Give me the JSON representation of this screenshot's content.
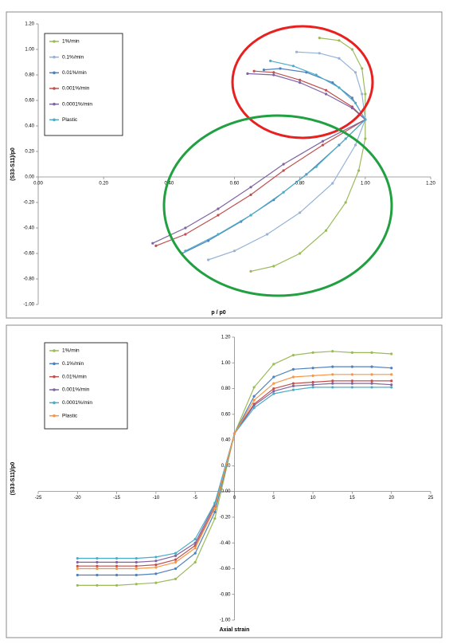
{
  "chart_data": [
    {
      "type": "line",
      "y_label": "(S33-S11)/p0",
      "x_label": "p / p0",
      "xlim": [
        0,
        1.2
      ],
      "ylim": [
        -1,
        1.2
      ],
      "xticks": [
        {
          "value": 0,
          "label": "0.00"
        },
        {
          "value": 0.2,
          "label": "0.20"
        },
        {
          "value": 0.4,
          "label": "0.40"
        },
        {
          "value": 0.6,
          "label": "0.60"
        },
        {
          "value": 0.8,
          "label": "0.80"
        },
        {
          "value": 1,
          "label": "1.00"
        },
        {
          "value": 1.2,
          "label": "1.20"
        }
      ],
      "yticks": [
        {
          "value": -1,
          "label": "-1.00"
        },
        {
          "value": -0.8,
          "label": "-0.80"
        },
        {
          "value": -0.6,
          "label": "-0.60"
        },
        {
          "value": -0.4,
          "label": "-0.40"
        },
        {
          "value": -0.2,
          "label": "-0.20"
        },
        {
          "value": 0,
          "label": "0.00"
        },
        {
          "value": 0.2,
          "label": "0.20"
        },
        {
          "value": 0.4,
          "label": "0.40"
        },
        {
          "value": 0.6,
          "label": "0.60"
        },
        {
          "value": 0.8,
          "label": "0.80"
        },
        {
          "value": 1,
          "label": "1.00"
        },
        {
          "value": 1.2,
          "label": "1.20"
        }
      ],
      "series": [
        {
          "name": "1%/min",
          "color": "#9bbb59",
          "x": [
            0.65,
            0.72,
            0.8,
            0.88,
            0.94,
            0.98,
            1.0,
            1.0,
            1.0,
            0.99,
            0.96,
            0.92,
            0.86
          ],
          "values": [
            -0.74,
            -0.7,
            -0.6,
            -0.42,
            -0.2,
            0.05,
            0.3,
            0.45,
            0.65,
            0.85,
            1.0,
            1.07,
            1.09
          ]
        },
        {
          "name": "0.1%/min",
          "color": "#95b3d7",
          "x": [
            0.52,
            0.6,
            0.7,
            0.8,
            0.9,
            0.97,
            1.0,
            0.99,
            0.97,
            0.92,
            0.86,
            0.79
          ],
          "values": [
            -0.65,
            -0.58,
            -0.45,
            -0.28,
            -0.05,
            0.25,
            0.45,
            0.65,
            0.82,
            0.93,
            0.97,
            0.98
          ]
        },
        {
          "name": "0.01%/min",
          "color": "#4f81bd",
          "x": [
            0.44,
            0.52,
            0.62,
            0.72,
            0.82,
            0.92,
            1.0,
            0.96,
            0.9,
            0.82,
            0.74,
            0.69
          ],
          "values": [
            -0.6,
            -0.5,
            -0.35,
            -0.18,
            0.02,
            0.25,
            0.45,
            0.62,
            0.74,
            0.82,
            0.85,
            0.84
          ]
        },
        {
          "name": "0.001%/min",
          "color": "#c0504d",
          "x": [
            0.36,
            0.45,
            0.55,
            0.65,
            0.75,
            0.87,
            1.0,
            0.96,
            0.88,
            0.8,
            0.72,
            0.66
          ],
          "values": [
            -0.54,
            -0.45,
            -0.3,
            -0.14,
            0.05,
            0.25,
            0.45,
            0.55,
            0.68,
            0.76,
            0.82,
            0.83
          ]
        },
        {
          "name": "0.0001%/min",
          "color": "#8064a2",
          "x": [
            0.35,
            0.45,
            0.55,
            0.65,
            0.75,
            0.87,
            1.0,
            0.96,
            0.88,
            0.8,
            0.72,
            0.64
          ],
          "values": [
            -0.52,
            -0.4,
            -0.25,
            -0.08,
            0.1,
            0.28,
            0.45,
            0.54,
            0.65,
            0.74,
            0.8,
            0.81
          ]
        },
        {
          "name": "Plastic",
          "color": "#4bacc6",
          "x": [
            0.45,
            0.55,
            0.65,
            0.75,
            0.85,
            0.94,
            1.0,
            0.97,
            0.92,
            0.85,
            0.78,
            0.71
          ],
          "values": [
            -0.58,
            -0.45,
            -0.3,
            -0.12,
            0.08,
            0.3,
            0.45,
            0.58,
            0.7,
            0.8,
            0.87,
            0.91
          ]
        }
      ]
    },
    {
      "type": "line",
      "y_label": "(S33-S11)/p0",
      "x_label": "Axial strain",
      "xlim": [
        -25,
        25
      ],
      "ylim": [
        -1,
        1.2
      ],
      "xticks": [
        -25,
        -20,
        -15,
        -10,
        -5,
        0,
        5,
        10,
        15,
        20,
        25
      ],
      "yticks": [
        {
          "value": -1,
          "label": "-1.00"
        },
        {
          "value": -0.8,
          "label": "-0.80"
        },
        {
          "value": -0.6,
          "label": "-0.60"
        },
        {
          "value": -0.4,
          "label": "-0.40"
        },
        {
          "value": -0.2,
          "label": "-0.20"
        },
        {
          "value": 0,
          "label": "0.00"
        },
        {
          "value": 0.2,
          "label": "0.20"
        },
        {
          "value": 0.4,
          "label": "0.40"
        },
        {
          "value": 0.6,
          "label": "0.60"
        },
        {
          "value": 0.8,
          "label": "0.80"
        },
        {
          "value": 1,
          "label": "1.00"
        },
        {
          "value": 1.2,
          "label": "1.20"
        }
      ],
      "x": [
        -20,
        -17.5,
        -15,
        -12.5,
        -10,
        -7.5,
        -5,
        -2.5,
        0,
        2.5,
        5,
        7.5,
        10,
        12.5,
        15,
        17.5,
        20
      ],
      "series": [
        {
          "name": "1%/min",
          "color": "#9bbb59",
          "values": [
            -0.73,
            -0.73,
            -0.73,
            -0.72,
            -0.71,
            -0.68,
            -0.55,
            -0.21,
            0.45,
            0.81,
            0.99,
            1.06,
            1.08,
            1.09,
            1.08,
            1.08,
            1.07
          ]
        },
        {
          "name": "0.1%/min",
          "color": "#4f81bd",
          "values": [
            -0.65,
            -0.65,
            -0.65,
            -0.65,
            -0.64,
            -0.6,
            -0.48,
            -0.16,
            0.45,
            0.74,
            0.89,
            0.95,
            0.96,
            0.97,
            0.97,
            0.97,
            0.96
          ]
        },
        {
          "name": "0.01%/min",
          "color": "#c0504d",
          "values": [
            -0.58,
            -0.58,
            -0.58,
            -0.58,
            -0.57,
            -0.53,
            -0.42,
            -0.12,
            0.45,
            0.68,
            0.8,
            0.84,
            0.85,
            0.86,
            0.86,
            0.86,
            0.86
          ]
        },
        {
          "name": "0.001%/min",
          "color": "#8064a2",
          "values": [
            -0.55,
            -0.55,
            -0.55,
            -0.55,
            -0.54,
            -0.5,
            -0.4,
            -0.1,
            0.45,
            0.67,
            0.78,
            0.82,
            0.83,
            0.84,
            0.84,
            0.84,
            0.83
          ]
        },
        {
          "name": "0.0001%/min",
          "color": "#4bacc6",
          "values": [
            -0.52,
            -0.52,
            -0.52,
            -0.52,
            -0.51,
            -0.48,
            -0.37,
            -0.09,
            0.45,
            0.65,
            0.76,
            0.79,
            0.81,
            0.81,
            0.81,
            0.81,
            0.81
          ]
        },
        {
          "name": "Plastic",
          "color": "#f79646",
          "values": [
            -0.6,
            -0.6,
            -0.6,
            -0.6,
            -0.59,
            -0.55,
            -0.44,
            -0.13,
            0.45,
            0.71,
            0.84,
            0.89,
            0.9,
            0.91,
            0.91,
            0.91,
            0.91
          ]
        }
      ]
    }
  ]
}
